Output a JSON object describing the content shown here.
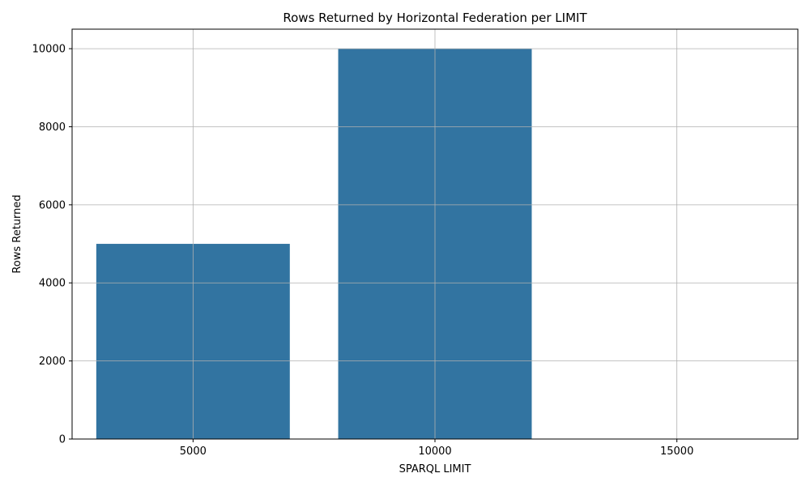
{
  "chart_data": {
    "type": "bar",
    "title": "Rows Returned by Horizontal Federation per LIMIT",
    "xlabel": "SPARQL LIMIT",
    "ylabel": "Rows Returned",
    "categories": [
      "5000",
      "10000",
      "15000"
    ],
    "values": [
      5000,
      10000,
      0
    ],
    "ylim": [
      0,
      10500
    ],
    "yticks": [
      0,
      2000,
      4000,
      6000,
      8000,
      10000
    ],
    "grid": true,
    "legend": "none",
    "bar_color": "#3274a1"
  }
}
